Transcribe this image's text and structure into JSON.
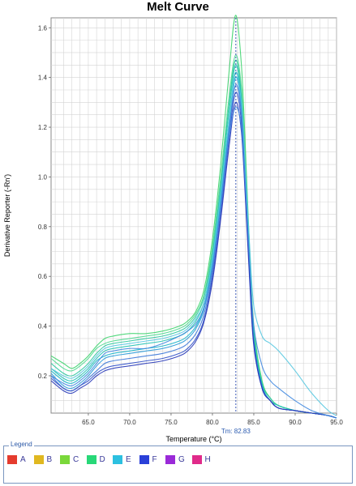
{
  "chart_data": {
    "type": "line",
    "title": "Melt Curve",
    "xlabel": "Temperature (°C)",
    "ylabel": "Derivative Reporter (-Rn')",
    "xlim": [
      60.5,
      95.0
    ],
    "ylim": [
      0.05,
      1.64
    ],
    "x_ticks": [
      65.0,
      70.0,
      75.0,
      80.0,
      85.0,
      90.0,
      95.0
    ],
    "x_tick_labels": [
      "65.0",
      "70.0",
      "75.0",
      "80.0",
      "85.0",
      "90.0",
      "95.0"
    ],
    "y_ticks": [
      0.2,
      0.4,
      0.6,
      0.8,
      1.0,
      1.2,
      1.4,
      1.6
    ],
    "y_tick_labels": [
      "0.2",
      "0.4",
      "0.6",
      "0.8",
      "1.0",
      "1.2",
      "1.4",
      "1.6"
    ],
    "grid": true,
    "tm": {
      "value": 82.83,
      "label": "Tm: 82.83"
    },
    "x": [
      60.5,
      62.0,
      63.0,
      64.0,
      65.0,
      66.0,
      67.0,
      68.0,
      70.0,
      72.0,
      74.0,
      76.0,
      77.0,
      78.0,
      79.0,
      80.0,
      81.0,
      82.0,
      82.8,
      83.5,
      84.0,
      84.5,
      85.0,
      86.0,
      87.0,
      88.0,
      90.0,
      92.0,
      94.0,
      95.0
    ],
    "series": [
      {
        "values": [
          0.28,
          0.25,
          0.23,
          0.25,
          0.28,
          0.32,
          0.35,
          0.36,
          0.37,
          0.37,
          0.38,
          0.4,
          0.42,
          0.46,
          0.55,
          0.75,
          1.05,
          1.42,
          1.65,
          1.45,
          1.1,
          0.7,
          0.4,
          0.18,
          0.11,
          0.08,
          0.06,
          0.05,
          0.04,
          0.03
        ],
        "color": "#3ed46e"
      },
      {
        "values": [
          0.27,
          0.23,
          0.22,
          0.24,
          0.27,
          0.31,
          0.33,
          0.34,
          0.35,
          0.36,
          0.37,
          0.39,
          0.41,
          0.45,
          0.53,
          0.72,
          1.0,
          1.32,
          1.49,
          1.36,
          1.05,
          0.68,
          0.38,
          0.17,
          0.11,
          0.08,
          0.06,
          0.05,
          0.04,
          0.03
        ],
        "color": "#4fd890"
      },
      {
        "values": [
          0.25,
          0.21,
          0.2,
          0.22,
          0.25,
          0.29,
          0.32,
          0.33,
          0.34,
          0.35,
          0.36,
          0.38,
          0.4,
          0.44,
          0.52,
          0.7,
          0.97,
          1.29,
          1.47,
          1.33,
          1.02,
          0.66,
          0.37,
          0.17,
          0.11,
          0.08,
          0.06,
          0.05,
          0.04,
          0.03
        ],
        "color": "#2ec8a0"
      },
      {
        "values": [
          0.23,
          0.19,
          0.18,
          0.2,
          0.23,
          0.27,
          0.3,
          0.31,
          0.32,
          0.33,
          0.34,
          0.36,
          0.38,
          0.42,
          0.5,
          0.68,
          0.95,
          1.26,
          1.45,
          1.31,
          1.0,
          0.65,
          0.36,
          0.16,
          0.1,
          0.08,
          0.06,
          0.05,
          0.04,
          0.03
        ],
        "color": "#24c2b2"
      },
      {
        "values": [
          0.22,
          0.18,
          0.17,
          0.19,
          0.22,
          0.26,
          0.28,
          0.29,
          0.3,
          0.31,
          0.32,
          0.34,
          0.36,
          0.4,
          0.48,
          0.66,
          0.92,
          1.22,
          1.42,
          1.29,
          0.98,
          0.63,
          0.35,
          0.16,
          0.1,
          0.07,
          0.06,
          0.05,
          0.04,
          0.03
        ],
        "color": "#1ab4c8"
      },
      {
        "values": [
          0.21,
          0.16,
          0.15,
          0.17,
          0.2,
          0.24,
          0.27,
          0.28,
          0.29,
          0.3,
          0.31,
          0.33,
          0.35,
          0.39,
          0.47,
          0.64,
          0.9,
          1.2,
          1.4,
          1.27,
          0.96,
          0.62,
          0.34,
          0.16,
          0.1,
          0.07,
          0.06,
          0.05,
          0.04,
          0.03
        ],
        "color": "#2a9ad8"
      },
      {
        "values": [
          0.2,
          0.15,
          0.14,
          0.16,
          0.19,
          0.22,
          0.25,
          0.26,
          0.27,
          0.28,
          0.29,
          0.31,
          0.33,
          0.37,
          0.45,
          0.62,
          0.88,
          1.18,
          1.37,
          1.25,
          0.95,
          0.61,
          0.34,
          0.15,
          0.1,
          0.07,
          0.06,
          0.05,
          0.04,
          0.03
        ],
        "color": "#3c78d8"
      },
      {
        "values": [
          0.19,
          0.15,
          0.14,
          0.16,
          0.18,
          0.21,
          0.23,
          0.24,
          0.25,
          0.26,
          0.27,
          0.29,
          0.31,
          0.35,
          0.43,
          0.6,
          0.85,
          1.15,
          1.34,
          1.22,
          0.93,
          0.6,
          0.33,
          0.15,
          0.1,
          0.07,
          0.06,
          0.05,
          0.04,
          0.03
        ],
        "color": "#3050c8"
      },
      {
        "values": [
          0.18,
          0.14,
          0.13,
          0.15,
          0.17,
          0.2,
          0.22,
          0.23,
          0.24,
          0.25,
          0.26,
          0.28,
          0.3,
          0.34,
          0.42,
          0.58,
          0.83,
          1.12,
          1.3,
          1.18,
          0.9,
          0.58,
          0.32,
          0.15,
          0.1,
          0.07,
          0.06,
          0.05,
          0.04,
          0.03
        ],
        "color": "#2838b8"
      },
      {
        "values": [
          0.2,
          0.17,
          0.16,
          0.18,
          0.21,
          0.25,
          0.29,
          0.3,
          0.31,
          0.31,
          0.33,
          0.36,
          0.38,
          0.41,
          0.48,
          0.64,
          0.88,
          1.16,
          1.28,
          1.2,
          0.95,
          0.65,
          0.4,
          0.24,
          0.18,
          0.15,
          0.1,
          0.06,
          0.04,
          0.03
        ],
        "color": "#4088e0"
      },
      {
        "values": [
          0.23,
          0.2,
          0.19,
          0.21,
          0.24,
          0.28,
          0.31,
          0.32,
          0.33,
          0.34,
          0.35,
          0.37,
          0.39,
          0.43,
          0.5,
          0.67,
          0.93,
          1.22,
          1.4,
          1.3,
          1.02,
          0.72,
          0.48,
          0.36,
          0.33,
          0.3,
          0.22,
          0.13,
          0.06,
          0.04
        ],
        "color": "#58c8e0"
      }
    ]
  },
  "legend": {
    "title": "Legend",
    "items": [
      {
        "label": "A",
        "color": "#e53b2e"
      },
      {
        "label": "B",
        "color": "#e0b820"
      },
      {
        "label": "C",
        "color": "#7ad83a"
      },
      {
        "label": "D",
        "color": "#28d878"
      },
      {
        "label": "E",
        "color": "#2cc0e0"
      },
      {
        "label": "F",
        "color": "#2a40d8"
      },
      {
        "label": "G",
        "color": "#9a2ad8"
      },
      {
        "label": "H",
        "color": "#e02a8a"
      }
    ]
  }
}
